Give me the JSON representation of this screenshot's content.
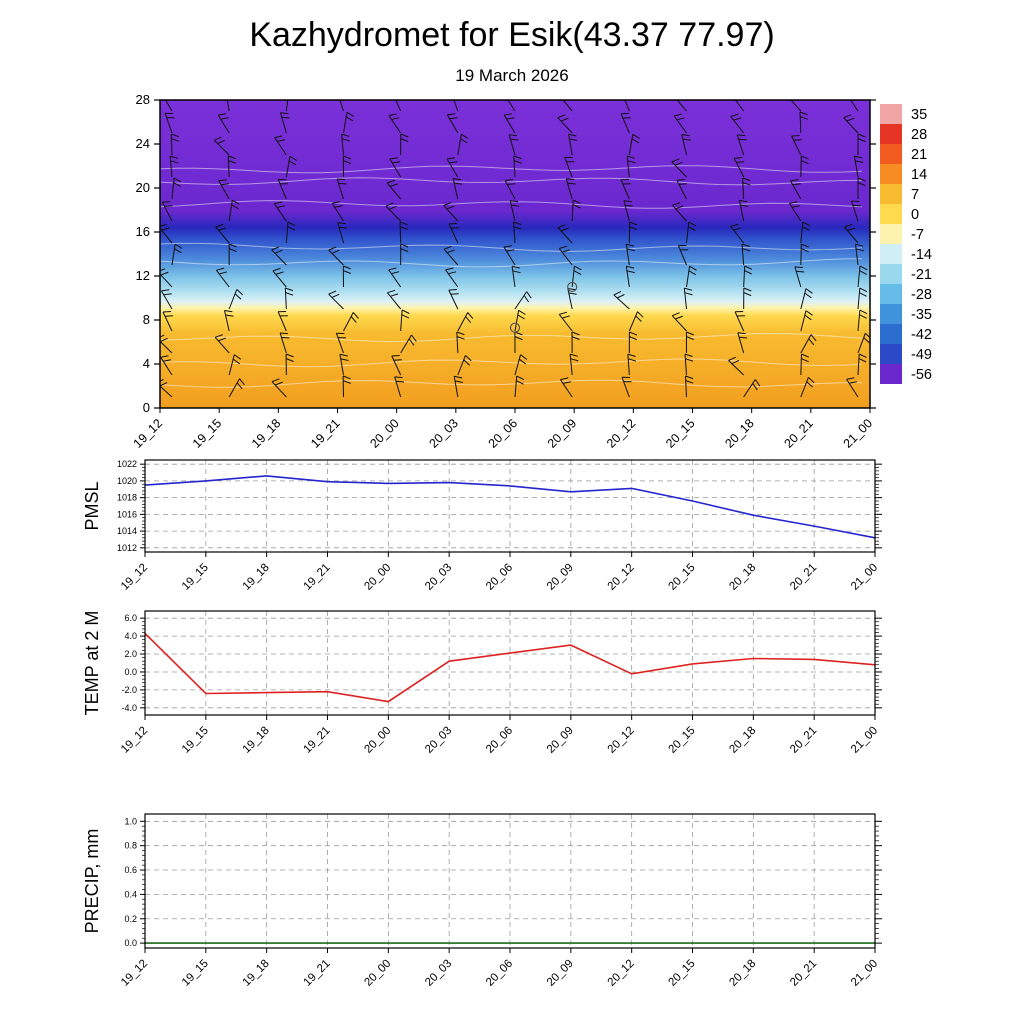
{
  "header": {
    "title": "Kazhydromet for Esik(43.37 77.97)",
    "subtitle": "19 March 2026"
  },
  "time_labels": [
    "19_12",
    "19_15",
    "19_18",
    "19_21",
    "20_00",
    "20_03",
    "20_06",
    "20_09",
    "20_12",
    "20_15",
    "20_18",
    "20_21",
    "21_00"
  ],
  "chart_data": [
    {
      "id": "temp-profile",
      "type": "heatmap",
      "description": "Vertical temperature cross-section with wind barbs",
      "ylim": [
        0,
        28
      ],
      "y_ticks": [
        0,
        4,
        8,
        12,
        16,
        20,
        24,
        28
      ],
      "gradient_stops": [
        {
          "pos": 0.0,
          "color": "#7b30d8"
        },
        {
          "pos": 0.36,
          "color": "#6b28cf"
        },
        {
          "pos": 0.415,
          "color": "#2828bc"
        },
        {
          "pos": 0.45,
          "color": "#2f52cc"
        },
        {
          "pos": 0.52,
          "color": "#4e8edc"
        },
        {
          "pos": 0.575,
          "color": "#7fc4e8"
        },
        {
          "pos": 0.625,
          "color": "#b4e2f2"
        },
        {
          "pos": 0.655,
          "color": "#dff2f6"
        },
        {
          "pos": 0.675,
          "color": "#fdf3ae"
        },
        {
          "pos": 0.7,
          "color": "#ffd94e"
        },
        {
          "pos": 0.76,
          "color": "#f8bb30"
        },
        {
          "pos": 1.0,
          "color": "#f29e1f"
        }
      ],
      "contour_lines": [
        {
          "y": 21.7
        },
        {
          "y": 20.6
        },
        {
          "y": 18.5
        },
        {
          "y": 14.6
        },
        {
          "y": 13.2
        },
        {
          "y": 6.4
        },
        {
          "y": 4.1
        },
        {
          "y": 2.2
        }
      ],
      "calm_markers": [
        {
          "x_index": 6,
          "y": 7.3
        },
        {
          "x_index": 7,
          "y": 11.0
        }
      ],
      "wind_barbs": {
        "columns": 13,
        "rows": 14,
        "row_y_start": 1,
        "row_y_step": 2
      },
      "colorbar": {
        "tick_labels": [
          "35",
          "28",
          "21",
          "14",
          "7",
          "0",
          "-7",
          "-14",
          "-21",
          "-28",
          "-35",
          "-42",
          "-49",
          "-56"
        ],
        "colors": [
          "#f2a5a5",
          "#e63425",
          "#f25b20",
          "#f68c22",
          "#f8bb30",
          "#ffd94e",
          "#fdf3ae",
          "#cfeef6",
          "#9ad8ee",
          "#66bbe8",
          "#3f93dc",
          "#2b6ed0",
          "#2b49c6",
          "#6a28cc"
        ]
      }
    },
    {
      "id": "pmsl",
      "type": "line",
      "ylabel": "PMSL",
      "color": "#2525cf",
      "values": [
        1019.5,
        1020.0,
        1020.6,
        1019.9,
        1019.7,
        1019.8,
        1019.4,
        1018.7,
        1019.1,
        1017.6,
        1015.9,
        1014.6,
        1013.2
      ],
      "ylim": [
        1011.5,
        1022.5
      ],
      "yticks": [
        {
          "v": 1022,
          "label": "1022"
        },
        {
          "v": 1020,
          "label": "1020"
        },
        {
          "v": 1018,
          "label": "1018"
        },
        {
          "v": 1016,
          "label": "1016"
        },
        {
          "v": 1014,
          "label": "1014"
        },
        {
          "v": 1012,
          "label": "1012"
        }
      ]
    },
    {
      "id": "temp2m",
      "type": "line",
      "ylabel": "TEMP at 2 M",
      "color": "#dd2222",
      "values": [
        4.3,
        -2.4,
        -2.3,
        -2.2,
        -3.3,
        1.2,
        2.1,
        3.0,
        -0.2,
        0.9,
        1.5,
        1.4,
        0.8
      ],
      "ylim": [
        -4.8,
        6.8
      ],
      "yticks": [
        {
          "v": 6,
          "label": "6.0"
        },
        {
          "v": 4,
          "label": "4.0"
        },
        {
          "v": 2,
          "label": "2.0"
        },
        {
          "v": 0,
          "label": "0.0"
        },
        {
          "v": -2,
          "label": "-2.0"
        },
        {
          "v": -4,
          "label": "-4.0"
        }
      ]
    },
    {
      "id": "precip",
      "type": "line",
      "ylabel": "PRECIP, mm",
      "color": "#1a6b1a",
      "values": [
        0.0,
        0.0,
        0.0,
        0.0,
        0.0,
        0.0,
        0.0,
        0.0,
        0.0,
        0.0,
        0.0,
        0.0,
        0.0
      ],
      "ylim": [
        -0.04,
        1.06
      ],
      "yticks": [
        {
          "v": 1.0,
          "label": "1.0"
        },
        {
          "v": 0.8,
          "label": "0.8"
        },
        {
          "v": 0.6,
          "label": "0.6"
        },
        {
          "v": 0.4,
          "label": "0.4"
        },
        {
          "v": 0.2,
          "label": "0.2"
        },
        {
          "v": 0.0,
          "label": "0.0"
        }
      ]
    }
  ]
}
